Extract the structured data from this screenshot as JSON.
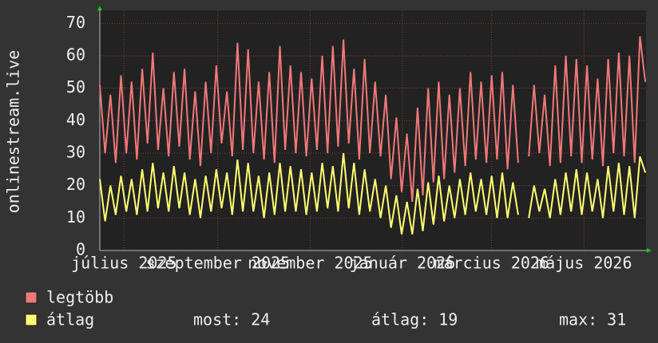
{
  "chart_data": {
    "type": "line",
    "ylabel": "onlinestream.live",
    "x": [
      0,
      3.5,
      7,
      10.5,
      14,
      17.5,
      21,
      24.5,
      28,
      31.5,
      35,
      38.5,
      42,
      45.5,
      49,
      52.5,
      56,
      59.5,
      63,
      66.5,
      70,
      73.5,
      77,
      80.5,
      84,
      87.5,
      91,
      94.5,
      98,
      101.5,
      105,
      108.5,
      112,
      115.5,
      119,
      122.5,
      126,
      129.5,
      133,
      136.5,
      140,
      143.5,
      147,
      150.5,
      154,
      157.5,
      161,
      164.5,
      168,
      171.5,
      175,
      178.5,
      182,
      185.5,
      189,
      192.5,
      196,
      199.5,
      203,
      206.5,
      210,
      213.5,
      217,
      220.5,
      224,
      227.5,
      231,
      234.5,
      238,
      241.5,
      245,
      248.5,
      252,
      255.5,
      259,
      262.5,
      266,
      269.5,
      273,
      276.5,
      280,
      283.5,
      287,
      290.5,
      294,
      297.5,
      301,
      304.5,
      308,
      311.5,
      315,
      318.5,
      322,
      325.5,
      329,
      332.5,
      336,
      339.5,
      343,
      346.5,
      350,
      353.5,
      357,
      360.5
    ],
    "series": [
      {
        "name": "legtöbb",
        "color": "#f07878",
        "values": [
          51,
          30,
          48,
          27,
          54,
          30,
          52,
          28,
          56,
          33,
          61,
          31,
          50,
          29,
          55,
          32,
          56,
          28,
          49,
          26,
          52,
          30,
          57,
          33,
          49,
          29,
          64,
          31,
          62,
          30,
          52,
          28,
          55,
          27,
          63,
          31,
          57,
          30,
          55,
          29,
          53,
          31,
          60,
          30,
          63,
          32,
          65,
          33,
          56,
          28,
          59,
          30,
          52,
          29,
          48,
          22,
          41,
          18,
          36,
          15,
          44,
          17,
          50,
          21,
          52,
          22,
          48,
          24,
          50,
          26,
          55,
          28,
          52,
          27,
          54,
          28,
          55,
          25,
          51,
          27,
          null,
          29,
          51,
          30,
          48,
          26,
          57,
          27,
          60,
          29,
          59,
          27,
          57,
          28,
          53,
          26,
          59,
          30,
          61,
          29,
          60,
          27,
          66,
          52
        ]
      },
      {
        "name": "átlag",
        "color": "#ffff70",
        "values": [
          22,
          9,
          20,
          11,
          23,
          12,
          22,
          11,
          25,
          12,
          27,
          13,
          24,
          12,
          26,
          13,
          24,
          11,
          22,
          10,
          23,
          12,
          25,
          13,
          24,
          11,
          28,
          12,
          27,
          12,
          23,
          10,
          24,
          11,
          27,
          12,
          26,
          12,
          25,
          11,
          24,
          12,
          27,
          13,
          26,
          12,
          30,
          13,
          27,
          11,
          25,
          12,
          22,
          10,
          20,
          7,
          17,
          5,
          15,
          5,
          19,
          6,
          21,
          8,
          23,
          9,
          20,
          10,
          22,
          11,
          24,
          12,
          22,
          11,
          23,
          10,
          24,
          10,
          21,
          11,
          null,
          10,
          20,
          12,
          19,
          10,
          22,
          11,
          24,
          12,
          25,
          11,
          24,
          12,
          22,
          10,
          26,
          12,
          27,
          11,
          26,
          10,
          29,
          24
        ]
      }
    ],
    "xlim": [
      0,
      361
    ],
    "xticks": [
      {
        "value": 16,
        "label": "július 2025"
      },
      {
        "value": 78,
        "label": "szeptember 2025"
      },
      {
        "value": 139,
        "label": "november 2025"
      },
      {
        "value": 200,
        "label": "január 2026"
      },
      {
        "value": 259,
        "label": "március 2026"
      },
      {
        "value": 320,
        "label": "május 2026"
      }
    ],
    "ylim": [
      0,
      74
    ],
    "yticks": [
      0,
      10,
      20,
      30,
      40,
      50,
      60,
      70
    ],
    "grid": true,
    "stats": [
      {
        "label": "most:",
        "value": 24
      },
      {
        "label": "átlag:",
        "value": 19
      },
      {
        "label": "max:",
        "value": 31
      }
    ]
  }
}
